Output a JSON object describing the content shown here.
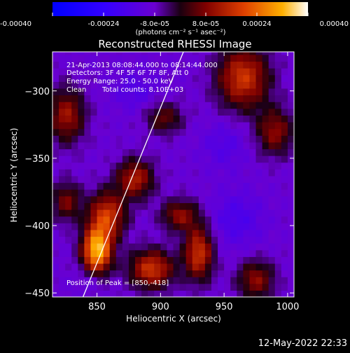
{
  "chart_data": {
    "type": "heatmap",
    "title": "Reconstructed RHESSI Image",
    "xlabel": "Heliocentric X (arcsec)",
    "ylabel": "Heliocentric Y (arcsec)",
    "xlim": [
      815,
      1005
    ],
    "ylim": [
      -453,
      -271
    ],
    "x_ticks": [
      850,
      900,
      950,
      1000
    ],
    "y_ticks": [
      -300,
      -350,
      -400,
      -450
    ],
    "colorbar": {
      "range": [
        -0.0004,
        0.0004
      ],
      "tick_values": [
        -0.0004,
        -0.00024,
        -8e-05,
        8e-05,
        0.00024,
        0.0004
      ],
      "tick_labels": [
        "-0.00040",
        "-0.00024",
        "-8.0e-05",
        "8.0e-05",
        "0.00024",
        "0.00040"
      ],
      "label": "(photons cm⁻² s⁻¹ asec⁻²)"
    },
    "annotations": {
      "time": "21-Apr-2013 08:08:44.000 to 08:14:44.000",
      "detectors": "Detectors: 3F 4F 5F 6F 7F 8F, Att 0",
      "energy": "Energy Range: 25.0 - 50.0 keV",
      "method": "Clean",
      "counts": "Total counts: 8.10E+03",
      "peak": "Position of Peak = [850,-418]"
    },
    "peak": {
      "x": 850,
      "y": -418
    },
    "limb_line": [
      [
        839,
        -453
      ],
      [
        918,
        -271
      ]
    ],
    "blobs": [
      {
        "x": 850,
        "y": -418,
        "amp": 0.00042,
        "sx": 8,
        "sy": 12
      },
      {
        "x": 858,
        "y": -392,
        "amp": 0.00026,
        "sx": 10,
        "sy": 12
      },
      {
        "x": 880,
        "y": -365,
        "amp": 0.00022,
        "sx": 10,
        "sy": 10
      },
      {
        "x": 893,
        "y": -432,
        "amp": 0.00026,
        "sx": 12,
        "sy": 10
      },
      {
        "x": 930,
        "y": -420,
        "amp": 0.00026,
        "sx": 8,
        "sy": 14
      },
      {
        "x": 915,
        "y": -392,
        "amp": 0.00018,
        "sx": 10,
        "sy": 8
      },
      {
        "x": 826,
        "y": -318,
        "amp": 0.0002,
        "sx": 10,
        "sy": 14
      },
      {
        "x": 826,
        "y": -382,
        "amp": 0.00016,
        "sx": 8,
        "sy": 10
      },
      {
        "x": 903,
        "y": -320,
        "amp": 0.00014,
        "sx": 10,
        "sy": 8
      },
      {
        "x": 965,
        "y": -290,
        "amp": 0.00026,
        "sx": 14,
        "sy": 16
      },
      {
        "x": 990,
        "y": -330,
        "amp": 0.00018,
        "sx": 10,
        "sy": 12
      },
      {
        "x": 975,
        "y": -440,
        "amp": 0.00018,
        "sx": 10,
        "sy": 10
      },
      {
        "x": 960,
        "y": -395,
        "amp": -8e-05,
        "sx": 14,
        "sy": 14
      },
      {
        "x": 950,
        "y": -340,
        "amp": -6e-05,
        "sx": 12,
        "sy": 12
      },
      {
        "x": 880,
        "y": -300,
        "amp": -6e-05,
        "sx": 12,
        "sy": 10
      },
      {
        "x": 845,
        "y": -440,
        "amp": -4e-05,
        "sx": 8,
        "sy": 6
      }
    ]
  },
  "footer": {
    "timestamp": "12-May-2022 22:33"
  }
}
